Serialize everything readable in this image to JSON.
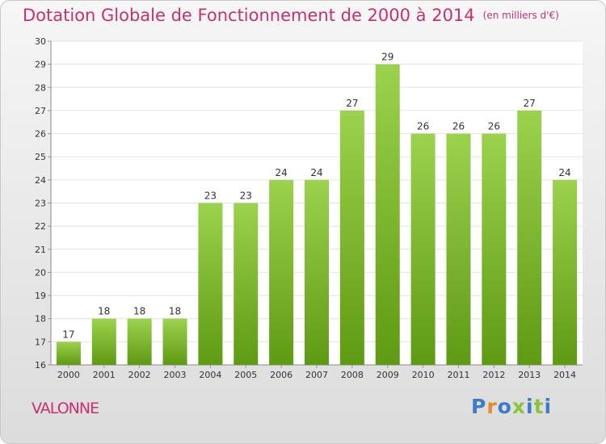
{
  "header": {
    "title": "Dotation Globale de Fonctionnement de 2000 à 2014",
    "subtitle": "(en milliers d'€)"
  },
  "footer": {
    "commune": "VALONNE",
    "logo_text": "Proxiti"
  },
  "colors": {
    "title": "#cc2f6f",
    "bar_top": "#9bd24e",
    "bar_bottom": "#5f9a14",
    "logo_letters": [
      "#3a7cc9",
      "#e8892c",
      "#3a7cc9",
      "#8ac43f",
      "#3a7cc9",
      "#8ac43f",
      "#3a7cc9"
    ]
  },
  "chart_data": {
    "type": "bar",
    "title": "Dotation Globale de Fonctionnement de 2000 à 2014",
    "subtitle": "(en milliers d'€)",
    "categories": [
      "2000",
      "2001",
      "2002",
      "2003",
      "2004",
      "2005",
      "2006",
      "2007",
      "2008",
      "2009",
      "2010",
      "2011",
      "2012",
      "2013",
      "2014"
    ],
    "values": [
      17,
      18,
      18,
      18,
      23,
      23,
      24,
      24,
      27,
      29,
      26,
      26,
      26,
      27,
      24
    ],
    "ylim": [
      16,
      30
    ],
    "yticks": [
      16,
      17,
      18,
      19,
      20,
      21,
      22,
      23,
      24,
      25,
      26,
      27,
      28,
      29,
      30
    ],
    "grid": true,
    "data_labels": true
  }
}
